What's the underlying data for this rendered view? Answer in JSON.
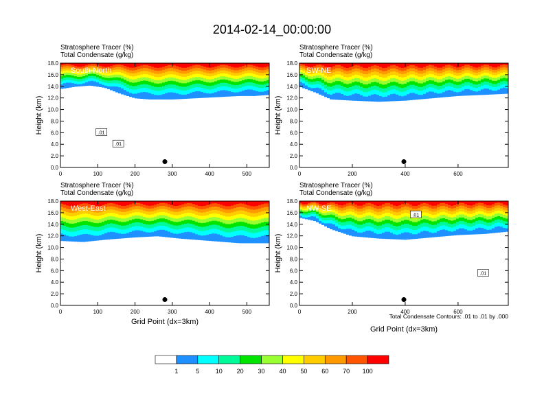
{
  "figure": {
    "title": "2014-02-14_00:00:00",
    "contour_note": "Total Condensate Contours: .01 to .01 by .000"
  },
  "colors": {
    "ramp": [
      "#ffffff",
      "#1e90ff",
      "#00ffff",
      "#00fa9a",
      "#00e400",
      "#9aff32",
      "#ffff00",
      "#ffcc00",
      "#ff9900",
      "#ff5500",
      "#ff0000"
    ],
    "contour_line": "#000000",
    "marker": "#000000"
  },
  "colorbar": {
    "labels": [
      "1",
      "5",
      "10",
      "20",
      "30",
      "40",
      "50",
      "60",
      "70",
      "100"
    ]
  },
  "chart_data": [
    {
      "type": "heatmap",
      "panel_label": "South-North",
      "header": [
        "Stratosphere Tracer   (%)",
        "Total Condensate   (g/kg)"
      ],
      "ylabel": "Height (km)",
      "xlabel": "",
      "xlim": [
        0,
        560
      ],
      "ylim": [
        0,
        18
      ],
      "xticks": [
        0,
        100,
        200,
        300,
        400,
        500
      ],
      "xtick_labels": [
        "0",
        "100",
        "200",
        "300",
        "400",
        "500"
      ],
      "yticks": [
        0,
        2,
        4,
        6,
        8,
        10,
        12,
        14,
        16,
        18
      ],
      "ytick_labels": [
        "0.0",
        "2.0",
        "4.0",
        "6.0",
        "8.0",
        "10.0",
        "12.0",
        "14.0",
        "16.0",
        "18.0"
      ],
      "marker_point": [
        280,
        1.0
      ],
      "tracer_bottom": [
        [
          0,
          13.6
        ],
        [
          40,
          14.0
        ],
        [
          80,
          14.2
        ],
        [
          120,
          13.8
        ],
        [
          160,
          12.8
        ],
        [
          200,
          12.0
        ],
        [
          240,
          11.8
        ],
        [
          300,
          11.8
        ],
        [
          360,
          12.0
        ],
        [
          420,
          12.2
        ],
        [
          480,
          12.4
        ],
        [
          520,
          12.4
        ],
        [
          560,
          12.6
        ]
      ],
      "contour_labels": [
        {
          "text": ".01",
          "x": 110,
          "y": 6.0
        },
        {
          "text": ".01",
          "x": 155,
          "y": 4.0
        }
      ]
    },
    {
      "type": "heatmap",
      "panel_label": "SW-NE",
      "header": [
        "Stratosphere Tracer   (%)",
        "Total Condensate   (g/kg)"
      ],
      "ylabel": "Height (km)",
      "xlabel": "",
      "xlim": [
        0,
        790
      ],
      "ylim": [
        0,
        18
      ],
      "xticks": [
        0,
        200,
        400,
        600
      ],
      "xtick_labels": [
        "0",
        "200",
        "400",
        "600"
      ],
      "yticks": [
        0,
        2,
        4,
        6,
        8,
        10,
        12,
        14,
        16,
        18
      ],
      "ytick_labels": [
        "0.0",
        "2.0",
        "4.0",
        "6.0",
        "8.0",
        "10.0",
        "12.0",
        "14.0",
        "16.0",
        "18.0"
      ],
      "marker_point": [
        395,
        1.0
      ],
      "tracer_bottom": [
        [
          0,
          14.0
        ],
        [
          60,
          13.0
        ],
        [
          120,
          11.8
        ],
        [
          200,
          11.6
        ],
        [
          300,
          11.4
        ],
        [
          400,
          11.6
        ],
        [
          500,
          12.0
        ],
        [
          600,
          12.4
        ],
        [
          700,
          12.6
        ],
        [
          790,
          12.8
        ]
      ],
      "contour_labels": []
    },
    {
      "type": "heatmap",
      "panel_label": "West-East",
      "header": [
        "Stratosphere Tracer   (%)",
        "Total Condensate   (g/kg)"
      ],
      "ylabel": "Height (km)",
      "xlabel": "Grid Point (dx=3km)",
      "xlim": [
        0,
        560
      ],
      "ylim": [
        0,
        18
      ],
      "xticks": [
        0,
        100,
        200,
        300,
        400,
        500
      ],
      "xtick_labels": [
        "0",
        "100",
        "200",
        "300",
        "400",
        "500"
      ],
      "yticks": [
        0,
        2,
        4,
        6,
        8,
        10,
        12,
        14,
        16,
        18
      ],
      "ytick_labels": [
        "0.0",
        "2.0",
        "4.0",
        "6.0",
        "8.0",
        "10.0",
        "12.0",
        "14.0",
        "16.0",
        "18.0"
      ],
      "marker_point": [
        280,
        1.0
      ],
      "tracer_bottom": [
        [
          0,
          11.2
        ],
        [
          60,
          11.0
        ],
        [
          120,
          11.4
        ],
        [
          200,
          11.8
        ],
        [
          260,
          12.0
        ],
        [
          320,
          11.6
        ],
        [
          400,
          11.2
        ],
        [
          480,
          10.8
        ],
        [
          560,
          10.8
        ]
      ],
      "contour_labels": []
    },
    {
      "type": "heatmap",
      "panel_label": "NW-SE",
      "header": [
        "Stratosphere Tracer   (%)",
        "Total Condensate   (g/kg)"
      ],
      "ylabel": "Height (km)",
      "xlabel": "Grid Point (dx=3km)",
      "xlim": [
        0,
        790
      ],
      "ylim": [
        0,
        18
      ],
      "xticks": [
        0,
        200,
        400,
        600
      ],
      "xtick_labels": [
        "0",
        "200",
        "400",
        "600"
      ],
      "yticks": [
        0,
        2,
        4,
        6,
        8,
        10,
        12,
        14,
        16,
        18
      ],
      "ytick_labels": [
        "0.0",
        "2.0",
        "4.0",
        "6.0",
        "8.0",
        "10.0",
        "12.0",
        "14.0",
        "16.0",
        "18.0"
      ],
      "marker_point": [
        395,
        1.0
      ],
      "tracer_bottom": [
        [
          0,
          15.2
        ],
        [
          60,
          14.6
        ],
        [
          120,
          13.2
        ],
        [
          200,
          12.0
        ],
        [
          300,
          11.6
        ],
        [
          400,
          11.4
        ],
        [
          500,
          11.8
        ],
        [
          600,
          12.2
        ],
        [
          700,
          12.4
        ],
        [
          790,
          12.8
        ]
      ],
      "contour_labels": [
        {
          "text": ".01",
          "x": 440,
          "y": 15.6
        },
        {
          "text": ".01",
          "x": 695,
          "y": 5.5
        }
      ]
    }
  ]
}
